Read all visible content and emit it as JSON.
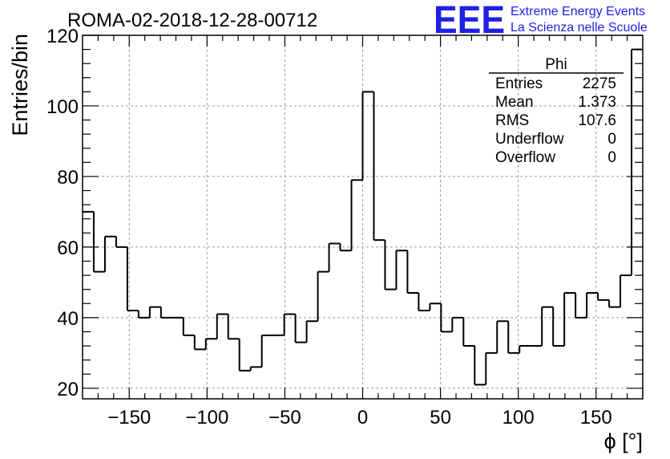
{
  "chart_data": {
    "type": "histogram",
    "title": "ROMA-02-2018-12-28-00712",
    "xlabel": "ϕ [°]",
    "ylabel": "Entries/bin",
    "xlim": [
      -180,
      180
    ],
    "ylim": [
      17,
      120
    ],
    "bin_width": 7.2,
    "x_ticks": [
      -150,
      -100,
      -50,
      0,
      50,
      100,
      150
    ],
    "x_tick_labels": [
      "−150",
      "−100",
      "−50",
      "0",
      "50",
      "100",
      "150"
    ],
    "y_ticks": [
      20,
      40,
      60,
      80,
      100,
      120
    ],
    "y_tick_labels": [
      "20",
      "40",
      "60",
      "80",
      "100",
      "120"
    ],
    "grid": true,
    "color": "#000000",
    "values": [
      70,
      53,
      63,
      60,
      42,
      40,
      43,
      40,
      40,
      35,
      31,
      34,
      41,
      34,
      25,
      26,
      35,
      35,
      41,
      33,
      39,
      53,
      61,
      59,
      79,
      104,
      62,
      48,
      59,
      47,
      42,
      44,
      36,
      40,
      32,
      21,
      30,
      39,
      30,
      32,
      32,
      43,
      32,
      47,
      40,
      47,
      45,
      43,
      52,
      116
    ]
  },
  "stats_box": {
    "title": "Phi",
    "rows": [
      {
        "label": "Entries",
        "value": "2275"
      },
      {
        "label": "Mean",
        "value": "1.373"
      },
      {
        "label": "RMS",
        "value": "107.6"
      },
      {
        "label": "Underflow",
        "value": "0"
      },
      {
        "label": "Overflow",
        "value": "0"
      }
    ]
  },
  "logo": {
    "mark": "EEE",
    "line1": "Extreme Energy Events",
    "line2": "La Scienza nelle Scuole",
    "color": "#1f1fe6"
  }
}
